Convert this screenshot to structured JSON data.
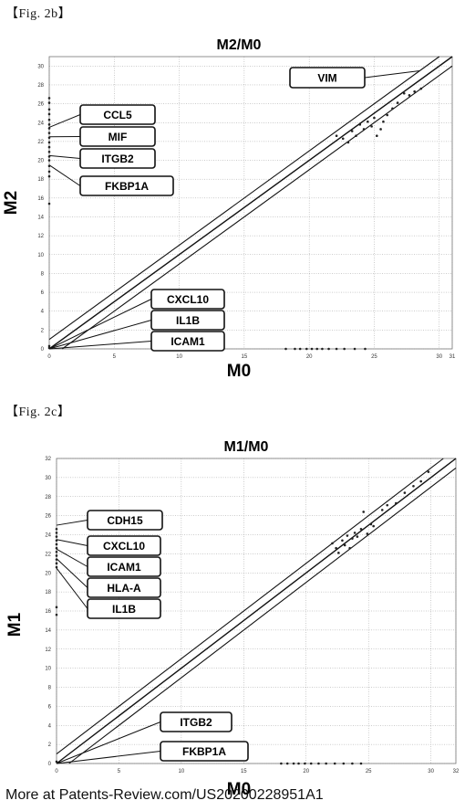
{
  "figures": {
    "fig2b_label": "【Fig. 2b】",
    "fig2c_label": "【Fig. 2c】"
  },
  "footer": {
    "text": "More at Patents-Review.com/US20200228951A1"
  },
  "chart_data": [
    {
      "type": "scatter",
      "title": "M2/M0",
      "xlabel": "M0",
      "ylabel": "M2",
      "xlim": [
        0,
        31
      ],
      "ylim": [
        0,
        31
      ],
      "x_ticks": [
        0,
        5,
        10,
        15,
        20,
        25,
        30,
        31
      ],
      "y_ticks": [
        0,
        2,
        4,
        6,
        8,
        10,
        12,
        14,
        16,
        18,
        20,
        22,
        24,
        26,
        28,
        30
      ],
      "grid": true,
      "reference_lines": [
        "y = x",
        "y = x + 1",
        "y = x - 1"
      ],
      "gene_labels": [
        {
          "text": "VIM",
          "x": 28.5,
          "y": 29.5
        },
        {
          "text": "CCL5",
          "x": 0,
          "y": 23.5
        },
        {
          "text": "MIF",
          "x": 0,
          "y": 22.5
        },
        {
          "text": "ITGB2",
          "x": 0,
          "y": 20.5
        },
        {
          "text": "FKBP1A",
          "x": 0,
          "y": 19.5
        },
        {
          "text": "CXCL10",
          "x": 0,
          "y": 0
        },
        {
          "text": "IL1B",
          "x": 0,
          "y": 0
        },
        {
          "text": "ICAM1",
          "x": 0,
          "y": 0
        }
      ],
      "points": [
        [
          0,
          26.6
        ],
        [
          0,
          26.1
        ],
        [
          0,
          25.4
        ],
        [
          0,
          24.9
        ],
        [
          0,
          24.3
        ],
        [
          0,
          23.8
        ],
        [
          0,
          23.4
        ],
        [
          0,
          22.9
        ],
        [
          0,
          22.4
        ],
        [
          0,
          21.9
        ],
        [
          0,
          21.4
        ],
        [
          0,
          20.9
        ],
        [
          0,
          20.4
        ],
        [
          0,
          20.0
        ],
        [
          0,
          19.4
        ],
        [
          0,
          18.8
        ],
        [
          0,
          18.3
        ],
        [
          0,
          15.4
        ],
        [
          0,
          0.3
        ],
        [
          0,
          0.1
        ],
        [
          22.1,
          22.6
        ],
        [
          22.6,
          22.3
        ],
        [
          23.0,
          21.9
        ],
        [
          23.3,
          23.1
        ],
        [
          23.6,
          22.6
        ],
        [
          23.9,
          23.8
        ],
        [
          24.2,
          23.3
        ],
        [
          24.5,
          24.1
        ],
        [
          24.8,
          23.6
        ],
        [
          25.0,
          24.5
        ],
        [
          25.2,
          22.6
        ],
        [
          25.5,
          23.3
        ],
        [
          25.7,
          24.1
        ],
        [
          26.0,
          24.8
        ],
        [
          26.4,
          25.5
        ],
        [
          26.8,
          26.1
        ],
        [
          27.3,
          27.1
        ],
        [
          27.7,
          26.9
        ],
        [
          28.1,
          27.3
        ],
        [
          28.6,
          27.6
        ],
        [
          18.2,
          0
        ],
        [
          18.9,
          0
        ],
        [
          19.3,
          0
        ],
        [
          19.8,
          0
        ],
        [
          20.2,
          0
        ],
        [
          20.6,
          0
        ],
        [
          21.0,
          0
        ],
        [
          21.5,
          0
        ],
        [
          22.1,
          0
        ],
        [
          22.7,
          0
        ],
        [
          23.5,
          0
        ],
        [
          24.3,
          0
        ]
      ]
    },
    {
      "type": "scatter",
      "title": "M1/M0",
      "xlabel": "M0",
      "ylabel": "M1",
      "xlim": [
        0,
        32
      ],
      "ylim": [
        0,
        32
      ],
      "x_ticks": [
        0,
        5,
        10,
        15,
        20,
        25,
        30,
        32
      ],
      "y_ticks": [
        0,
        2,
        4,
        6,
        8,
        10,
        12,
        14,
        16,
        18,
        20,
        22,
        24,
        26,
        28,
        30,
        32
      ],
      "grid": true,
      "reference_lines": [
        "y = x",
        "y = x + 1",
        "y = x - 1"
      ],
      "gene_labels": [
        {
          "text": "CDH15",
          "x": 0,
          "y": 25.0
        },
        {
          "text": "CXCL10",
          "x": 0,
          "y": 23.5
        },
        {
          "text": "ICAM1",
          "x": 0,
          "y": 22.5
        },
        {
          "text": "HLA-A",
          "x": 0,
          "y": 21.5
        },
        {
          "text": "IL1B",
          "x": 0,
          "y": 20.5
        },
        {
          "text": "ITGB2",
          "x": 0,
          "y": 0
        },
        {
          "text": "FKBP1A",
          "x": 0,
          "y": 0
        }
      ],
      "points": [
        [
          0,
          24.6
        ],
        [
          0,
          24.2
        ],
        [
          0,
          23.8
        ],
        [
          0,
          23.4
        ],
        [
          0,
          23.0
        ],
        [
          0,
          22.6
        ],
        [
          0,
          22.2
        ],
        [
          0,
          21.8
        ],
        [
          0,
          21.4
        ],
        [
          0,
          21.0
        ],
        [
          0,
          20.6
        ],
        [
          0,
          16.4
        ],
        [
          0,
          15.6
        ],
        [
          0,
          0.2
        ],
        [
          22.1,
          23.1
        ],
        [
          22.4,
          22.6
        ],
        [
          22.6,
          22.1
        ],
        [
          22.9,
          23.4
        ],
        [
          23.1,
          22.9
        ],
        [
          23.3,
          23.9
        ],
        [
          23.5,
          22.6
        ],
        [
          23.7,
          23.6
        ],
        [
          23.9,
          24.2
        ],
        [
          24.1,
          23.8
        ],
        [
          24.4,
          24.6
        ],
        [
          24.6,
          26.4
        ],
        [
          24.9,
          24.1
        ],
        [
          25.2,
          25.1
        ],
        [
          25.4,
          24.9
        ],
        [
          26.1,
          26.6
        ],
        [
          26.5,
          27.1
        ],
        [
          27.2,
          27.3
        ],
        [
          27.9,
          28.4
        ],
        [
          28.6,
          29.1
        ],
        [
          29.2,
          29.6
        ],
        [
          29.8,
          30.6
        ],
        [
          18.0,
          0
        ],
        [
          18.5,
          0
        ],
        [
          19.0,
          0
        ],
        [
          19.4,
          0
        ],
        [
          19.9,
          0
        ],
        [
          20.4,
          0
        ],
        [
          21.0,
          0
        ],
        [
          21.6,
          0
        ],
        [
          22.3,
          0
        ],
        [
          23.0,
          0
        ],
        [
          23.7,
          0
        ],
        [
          24.4,
          0
        ]
      ]
    }
  ]
}
